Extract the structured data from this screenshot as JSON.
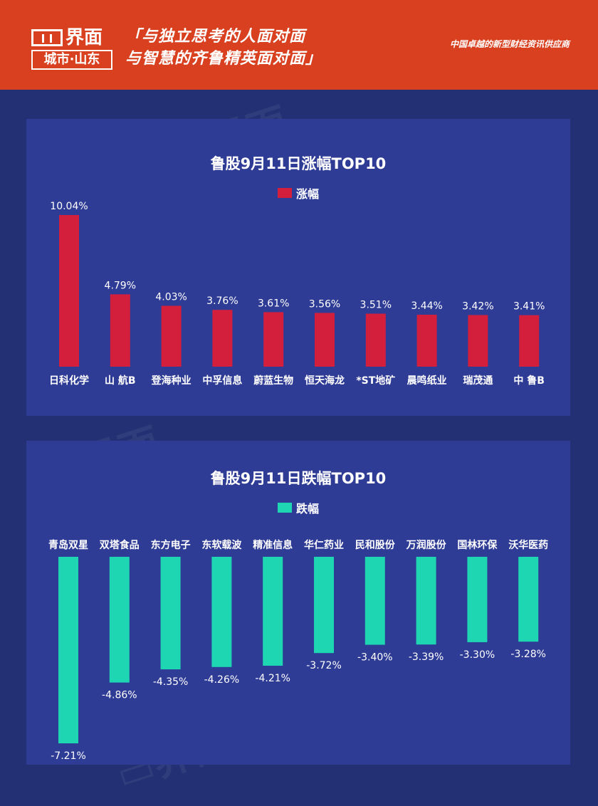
{
  "header": {
    "logo_text": "界面",
    "logo_sub": "城市·山东",
    "slogan_line1": "「与独立思考的人面对面",
    "slogan_line2": "与智慧的齐鲁精英面对面」",
    "tagline": "中国卓越的新型财经资讯供应商",
    "bg_color": "#d8401f"
  },
  "chart_data": [
    {
      "type": "bar",
      "title": "鲁股9月11日涨幅TOP10",
      "categories": [
        "日科化学",
        "山 航B",
        "登海种业",
        "中孚信息",
        "蔚蓝生物",
        "恒天海龙",
        "*ST地矿",
        "晨鸣纸业",
        "瑞茂通",
        "中 鲁B"
      ],
      "series": [
        {
          "name": "涨幅",
          "values": [
            10.04,
            4.79,
            4.03,
            3.76,
            3.61,
            3.56,
            3.51,
            3.44,
            3.42,
            3.41
          ],
          "labels": [
            "10.04%",
            "4.79%",
            "4.03%",
            "3.76%",
            "3.61%",
            "3.56%",
            "3.51%",
            "3.44%",
            "3.42%",
            "3.41%"
          ],
          "color": "#d41f3c"
        }
      ],
      "legend": "top-center",
      "grid": false
    },
    {
      "type": "bar",
      "title": "鲁股9月11日跌幅TOP10",
      "categories": [
        "青岛双星",
        "双塔食品",
        "东方电子",
        "东软载波",
        "精准信息",
        "华仁药业",
        "民和股份",
        "万润股份",
        "国林环保",
        "沃华医药"
      ],
      "series": [
        {
          "name": "跌幅",
          "values": [
            -7.21,
            -4.86,
            -4.35,
            -4.26,
            -4.21,
            -3.72,
            -3.4,
            -3.39,
            -3.3,
            -3.28
          ],
          "labels": [
            "-7.21%",
            "-4.86%",
            "-4.35%",
            "-4.26%",
            "-4.21%",
            "-3.72%",
            "-3.40%",
            "-3.39%",
            "-3.30%",
            "-3.28%"
          ],
          "color": "#1fd6b3"
        }
      ],
      "legend": "top-center",
      "grid": false
    }
  ]
}
